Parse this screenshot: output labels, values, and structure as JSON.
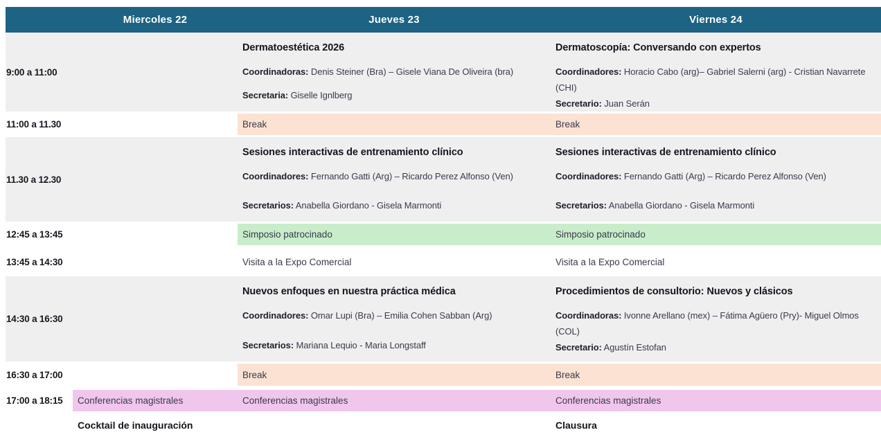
{
  "colors": {
    "c-header": "#1d6383",
    "c-gray": "#efeff0",
    "c-peach": "#fbe2d3",
    "c-green": "#c9ecca",
    "c-pink": "#f1c6ec"
  },
  "header": {
    "days": [
      "Miercoles 22",
      "Jueves 23",
      "Viernes 24"
    ]
  },
  "rows": [
    {
      "time": "9:00 a 11:00",
      "jueves": {
        "title": "Dermatoestética 2026",
        "coord_label": "Coordinadoras:",
        "coord": "Denis Steiner (Bra) – Gisele Viana De Oliveira (bra)",
        "sec_label": "Secretaria:",
        "sec": "Giselle Ignlberg"
      },
      "viernes": {
        "title": "Dermatoscopía: Conversando con expertos",
        "coord_label": "Coordinadores:",
        "coord": "Horacio Cabo (arg)– Gabriel Salerni (arg) - Cristian Navarrete (CHI)",
        "sec_label": "Secretario:",
        "sec": "Juan Serán"
      }
    },
    {
      "time": "11:00 a 11.30",
      "jueves_text": "Break",
      "viernes_text": "Break"
    },
    {
      "time": "11.30 a 12.30",
      "jueves": {
        "title": "Sesiones interactivas de entrenamiento clínico",
        "coord_label": "Coordinadores:",
        "coord": "Fernando Gatti (Arg) – Ricardo Perez Alfonso (Ven)",
        "sec_label": "Secretarios:",
        "sec": "Anabella Giordano - Gisela Marmonti"
      },
      "viernes": {
        "title": "Sesiones interactivas de entrenamiento clínico",
        "coord_label": "Coordinadores:",
        "coord": "Fernando Gatti (Arg) – Ricardo Perez Alfonso (Ven)",
        "sec_label": "Secretarios:",
        "sec": "Anabella Giordano - Gisela Marmonti"
      }
    },
    {
      "time": "12:45 a 13:45",
      "jueves_text": "Simposio patrocinado",
      "viernes_text": "Simposio patrocinado"
    },
    {
      "time": "13:45 a 14:30",
      "jueves_text": "Visita a la Expo Comercial",
      "viernes_text": "Visita a la Expo Comercial"
    },
    {
      "time": "14:30 a 16:30",
      "jueves": {
        "title": "Nuevos enfoques en nuestra práctica médica",
        "coord_label": "Coordinadores:",
        "coord": "Omar Lupi (Bra) – Emilia Cohen Sabban (Arg)",
        "sec_label": "Secretarios:",
        "sec": "Mariana Lequio - Maria Longstaff"
      },
      "viernes": {
        "title": "Procedimientos de consultorio: Nuevos y clásicos",
        "coord_label": "Coordinadoras:",
        "coord": "Ivonne Arellano (mex) – Fátima Agüero (Pry)- Miguel Olmos (COL)",
        "sec_label": "Secretario:",
        "sec": "Agustín Estofan"
      }
    },
    {
      "time": "16:30 a 17:00",
      "jueves_text": "Break",
      "viernes_text": "Break"
    },
    {
      "time": "17:00 a 18:15",
      "miercoles_text": "Conferencias magistrales",
      "jueves_text": "Conferencias magistrales",
      "viernes_text": "Conferencias magistrales"
    },
    {
      "time": "",
      "miercoles_text": "Cocktail de inauguración",
      "viernes_text": "Clausura"
    }
  ]
}
